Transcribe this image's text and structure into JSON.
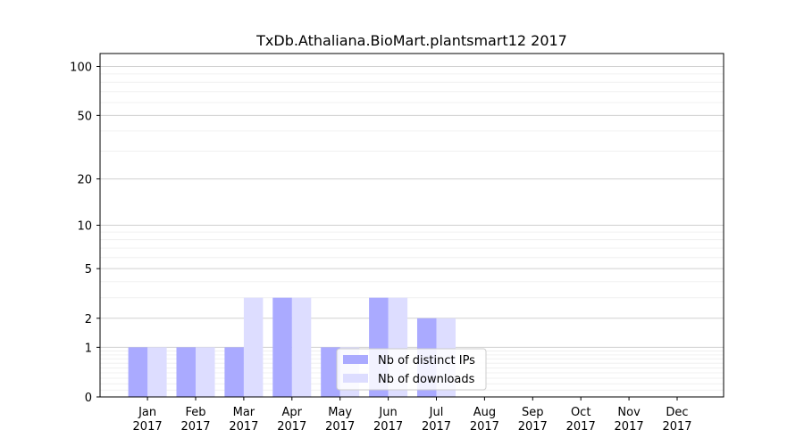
{
  "chart_data": {
    "type": "bar",
    "title": "TxDb.Athaliana.BioMart.plantsmart12 2017",
    "xlabel": "",
    "ylabel": "",
    "y_scale": "symlog",
    "ylim": [
      0,
      120
    ],
    "y_ticks": [
      0,
      1,
      2,
      5,
      10,
      20,
      50,
      100
    ],
    "grid": true,
    "legend_position": "bottom-center",
    "categories": [
      "Jan\n2017",
      "Feb\n2017",
      "Mar\n2017",
      "Apr\n2017",
      "May\n2017",
      "Jun\n2017",
      "Jul\n2017",
      "Aug\n2017",
      "Sep\n2017",
      "Oct\n2017",
      "Nov\n2017",
      "Dec\n2017"
    ],
    "series": [
      {
        "name": "Nb of distinct IPs",
        "color": "#aaaaff",
        "values": [
          1,
          1,
          1,
          3,
          1,
          3,
          2,
          0,
          0,
          0,
          0,
          0
        ]
      },
      {
        "name": "Nb of downloads",
        "color": "#ddddff",
        "values": [
          1,
          1,
          3,
          3,
          1,
          3,
          2,
          0,
          0,
          0,
          0,
          0
        ]
      }
    ]
  }
}
